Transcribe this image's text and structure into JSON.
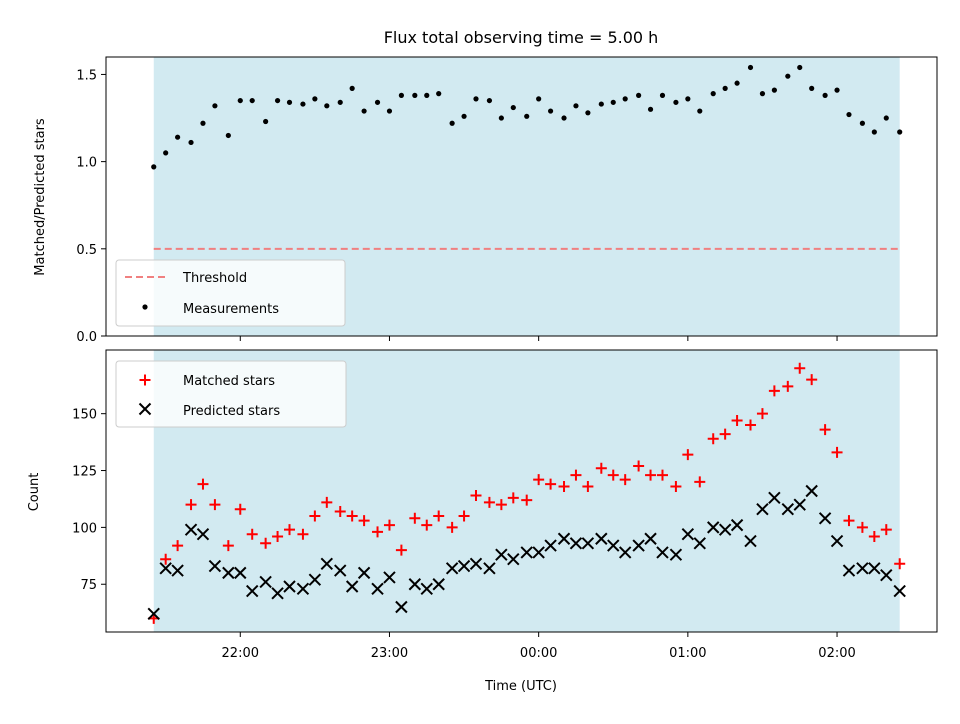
{
  "chart_data": {
    "title": "Flux total observing time = 5.00 h",
    "xlabel": "Time (UTC)",
    "x_tick_labels": [
      "22:00",
      "23:00",
      "00:00",
      "01:00",
      "02:00"
    ],
    "x_ticks_hours": [
      22,
      23,
      24,
      25,
      26
    ],
    "x_range_hours": [
      21.1,
      26.67
    ],
    "shade_range_hours": [
      21.42,
      26.42
    ],
    "colors": {
      "shade": "#add8e6",
      "threshold": "#f08080",
      "measurements": "#000000",
      "matched": "#ff0000",
      "predicted": "#000000"
    },
    "charts": [
      {
        "type": "scatter",
        "ylabel": "Matched/Predicted stars",
        "ylim": [
          0,
          1.6
        ],
        "yticks": [
          "0.0",
          "0.5",
          "1.0",
          "1.5"
        ],
        "ytick_values": [
          0,
          0.5,
          1.0,
          1.5
        ],
        "threshold": 0.5,
        "legend": {
          "placement": "lower-left",
          "entries": [
            "Threshold",
            "Measurements"
          ]
        },
        "x_hours": [
          21.42,
          21.5,
          21.58,
          21.67,
          21.75,
          21.83,
          21.92,
          22.0,
          22.08,
          22.17,
          22.25,
          22.33,
          22.42,
          22.5,
          22.58,
          22.67,
          22.75,
          22.83,
          22.92,
          23.0,
          23.08,
          23.17,
          23.25,
          23.33,
          23.42,
          23.5,
          23.58,
          23.67,
          23.75,
          23.83,
          23.92,
          24.0,
          24.08,
          24.17,
          24.25,
          24.33,
          24.42,
          24.5,
          24.58,
          24.67,
          24.75,
          24.83,
          24.92,
          25.0,
          25.08,
          25.17,
          25.25,
          25.33,
          25.42,
          25.5,
          25.58,
          25.67,
          25.75,
          25.83,
          25.92,
          26.0,
          26.08,
          26.17,
          26.25,
          26.33,
          26.42
        ],
        "values": [
          0.97,
          1.05,
          1.14,
          1.11,
          1.22,
          1.32,
          1.15,
          1.35,
          1.35,
          1.23,
          1.35,
          1.34,
          1.33,
          1.36,
          1.32,
          1.34,
          1.42,
          1.29,
          1.34,
          1.29,
          1.38,
          1.38,
          1.38,
          1.39,
          1.22,
          1.26,
          1.36,
          1.35,
          1.25,
          1.31,
          1.26,
          1.36,
          1.29,
          1.25,
          1.32,
          1.28,
          1.33,
          1.34,
          1.36,
          1.38,
          1.3,
          1.38,
          1.34,
          1.36,
          1.29,
          1.39,
          1.42,
          1.45,
          1.54,
          1.39,
          1.41,
          1.49,
          1.54,
          1.42,
          1.38,
          1.41,
          1.27,
          1.22,
          1.17,
          1.25,
          1.17
        ]
      },
      {
        "type": "scatter",
        "ylabel": "Count",
        "ylim": [
          54,
          178
        ],
        "yticks": [
          "75",
          "100",
          "125",
          "150"
        ],
        "ytick_values": [
          75,
          100,
          125,
          150
        ],
        "legend": {
          "placement": "upper-left",
          "entries": [
            "Matched stars",
            "Predicted stars"
          ]
        },
        "series": [
          {
            "name": "Matched stars",
            "marker": "+",
            "values": [
              60,
              86,
              92,
              110,
              119,
              110,
              92,
              108,
              97,
              93,
              96,
              99,
              97,
              105,
              111,
              107,
              105,
              103,
              98,
              101,
              90,
              104,
              101,
              105,
              100,
              105,
              114,
              111,
              110,
              113,
              112,
              121,
              119,
              118,
              123,
              118,
              126,
              123,
              121,
              127,
              123,
              123,
              118,
              132,
              120,
              139,
              141,
              147,
              145,
              150,
              160,
              162,
              170,
              165,
              143,
              133,
              103,
              100,
              96,
              99,
              84
            ]
          },
          {
            "name": "Predicted stars",
            "marker": "x",
            "values": [
              62,
              82,
              81,
              99,
              97,
              83,
              80,
              80,
              72,
              76,
              71,
              74,
              73,
              77,
              84,
              81,
              74,
              80,
              73,
              78,
              65,
              75,
              73,
              75,
              82,
              83,
              84,
              82,
              88,
              86,
              89,
              89,
              92,
              95,
              93,
              93,
              95,
              92,
              89,
              92,
              95,
              89,
              88,
              97,
              93,
              100,
              99,
              101,
              94,
              108,
              113,
              108,
              110,
              116,
              104,
              94,
              81,
              82,
              82,
              79,
              72
            ]
          }
        ]
      }
    ]
  }
}
